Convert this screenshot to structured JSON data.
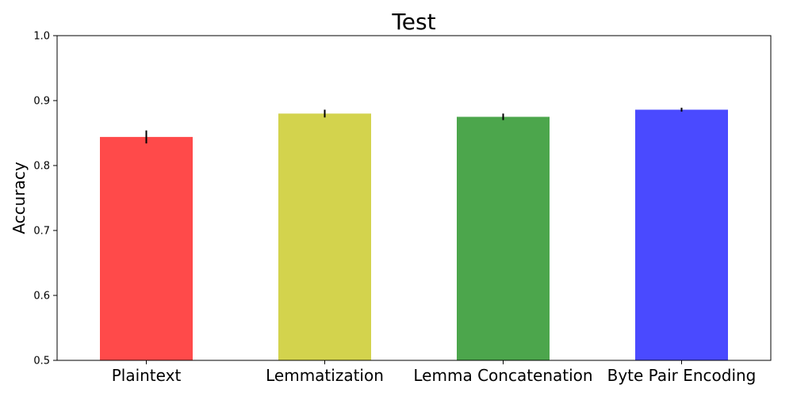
{
  "chart_data": {
    "type": "bar",
    "title": "Test",
    "xlabel": "",
    "ylabel": "Accuracy",
    "categories": [
      "Plaintext",
      "Lemmatization",
      "Lemma Concatenation",
      "Byte Pair Encoding"
    ],
    "values": [
      0.844,
      0.88,
      0.875,
      0.886
    ],
    "errors": [
      0.01,
      0.006,
      0.005,
      0.003
    ],
    "colors": [
      "#ff4a4a",
      "#d3d34d",
      "#4ca64c",
      "#4a4aff"
    ],
    "ylim": [
      0.5,
      1.0
    ],
    "yticks": [
      "0.5",
      "0.6",
      "0.7",
      "0.8",
      "0.9",
      "1.0"
    ],
    "grid": false,
    "legend": "none"
  }
}
